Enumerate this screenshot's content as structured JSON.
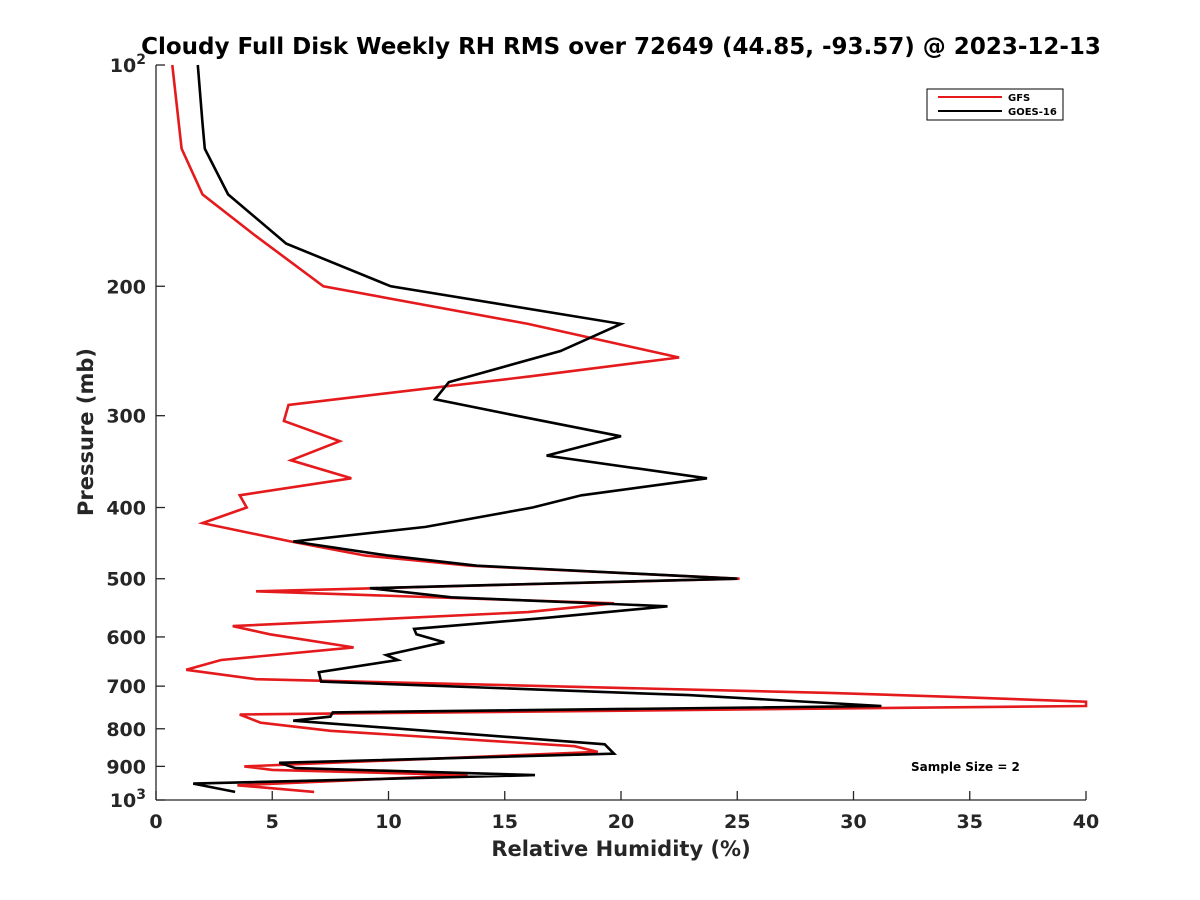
{
  "chart_data": {
    "type": "line",
    "title": "Cloudy Full Disk Weekly RH RMS over 72649 (44.85, -93.57) @ 2023-12-13",
    "xlabel": "Relative Humidity (%)",
    "ylabel": "Pressure (mb)",
    "xlim": [
      0,
      40
    ],
    "ylim": [
      100,
      1000
    ],
    "yscale": "log",
    "yreversed": true,
    "xticks": [
      0,
      5,
      10,
      15,
      20,
      25,
      30,
      35,
      40
    ],
    "xtick_labels": [
      "0",
      "5",
      "10",
      "15",
      "20",
      "25",
      "30",
      "35",
      "40"
    ],
    "yticks": [
      {
        "value": 100,
        "base": "10",
        "exp": "2"
      },
      {
        "value": 200,
        "label": "200"
      },
      {
        "value": 300,
        "label": "300"
      },
      {
        "value": 400,
        "label": "400"
      },
      {
        "value": 500,
        "label": "500"
      },
      {
        "value": 600,
        "label": "600"
      },
      {
        "value": 700,
        "label": "700"
      },
      {
        "value": 800,
        "label": "800"
      },
      {
        "value": 900,
        "label": "900"
      },
      {
        "value": 1000,
        "base": "10",
        "exp": "3"
      }
    ],
    "legend_position": "top-right",
    "annotation": "Sample Size = 2",
    "series": [
      {
        "name": "GFS",
        "color": "#e41a1c",
        "points": [
          [
            0.7,
            100
          ],
          [
            1.1,
            130
          ],
          [
            2.0,
            150
          ],
          [
            4.2,
            170
          ],
          [
            7.2,
            200
          ],
          [
            16.0,
            225
          ],
          [
            22.5,
            250
          ],
          [
            16.2,
            265
          ],
          [
            5.7,
            290
          ],
          [
            5.5,
            305
          ],
          [
            7.9,
            325
          ],
          [
            5.8,
            345
          ],
          [
            8.4,
            365
          ],
          [
            3.6,
            385
          ],
          [
            3.9,
            400
          ],
          [
            2.0,
            420
          ],
          [
            5.8,
            445
          ],
          [
            9.0,
            465
          ],
          [
            13.5,
            480
          ],
          [
            25.1,
            500
          ],
          [
            4.3,
            520
          ],
          [
            19.7,
            540
          ],
          [
            16.0,
            555
          ],
          [
            3.3,
            580
          ],
          [
            4.9,
            595
          ],
          [
            8.5,
            620
          ],
          [
            2.8,
            645
          ],
          [
            1.3,
            665
          ],
          [
            4.3,
            685
          ],
          [
            29.0,
            715
          ],
          [
            34.8,
            725
          ],
          [
            40.0,
            735
          ],
          [
            40.0,
            745
          ],
          [
            3.6,
            765
          ],
          [
            4.5,
            785
          ],
          [
            7.5,
            805
          ],
          [
            18.0,
            845
          ],
          [
            19.0,
            860
          ],
          [
            3.8,
            900
          ],
          [
            5.0,
            910
          ],
          [
            13.4,
            925
          ],
          [
            3.5,
            955
          ],
          [
            6.8,
            975
          ]
        ]
      },
      {
        "name": "GOES-16",
        "color": "#000000",
        "points": [
          [
            1.8,
            100
          ],
          [
            2.0,
            120
          ],
          [
            2.1,
            130
          ],
          [
            3.1,
            150
          ],
          [
            5.6,
            175
          ],
          [
            10.1,
            200
          ],
          [
            20.0,
            225
          ],
          [
            17.4,
            245
          ],
          [
            12.6,
            270
          ],
          [
            12.0,
            285
          ],
          [
            15.5,
            300
          ],
          [
            20.0,
            320
          ],
          [
            16.8,
            340
          ],
          [
            23.7,
            365
          ],
          [
            18.3,
            385
          ],
          [
            16.2,
            400
          ],
          [
            11.6,
            425
          ],
          [
            5.9,
            445
          ],
          [
            10.0,
            465
          ],
          [
            13.8,
            480
          ],
          [
            25.0,
            500
          ],
          [
            9.2,
            515
          ],
          [
            12.7,
            530
          ],
          [
            22.0,
            545
          ],
          [
            16.8,
            565
          ],
          [
            11.1,
            585
          ],
          [
            11.2,
            595
          ],
          [
            12.4,
            610
          ],
          [
            9.9,
            635
          ],
          [
            10.4,
            645
          ],
          [
            7.0,
            670
          ],
          [
            7.1,
            690
          ],
          [
            22.9,
            720
          ],
          [
            31.2,
            745
          ],
          [
            7.6,
            760
          ],
          [
            7.5,
            770
          ],
          [
            5.9,
            780
          ],
          [
            19.3,
            840
          ],
          [
            19.7,
            865
          ],
          [
            5.3,
            890
          ],
          [
            6.0,
            905
          ],
          [
            16.3,
            925
          ],
          [
            1.6,
            950
          ],
          [
            3.4,
            975
          ]
        ]
      }
    ]
  }
}
